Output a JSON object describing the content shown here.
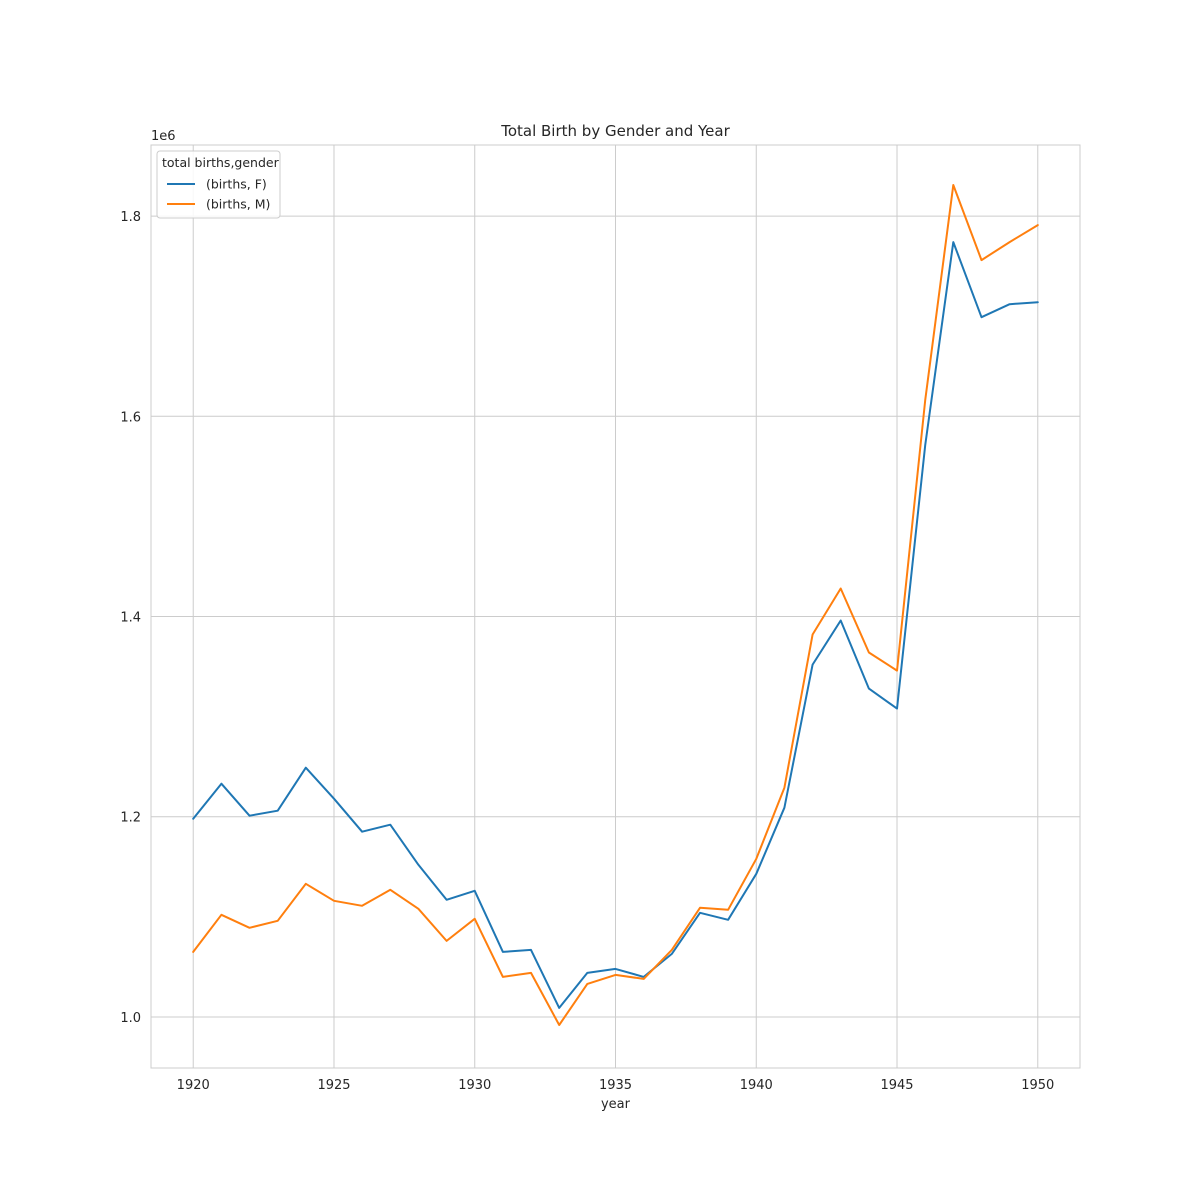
{
  "chart_data": {
    "type": "line",
    "title": "Total Birth by Gender and Year",
    "xlabel": "year",
    "ylabel": "",
    "y_offset_label": "1e6",
    "xlim": [
      1918.5,
      1951.5
    ],
    "ylim": [
      949000,
      1871000
    ],
    "x_ticks": [
      1920,
      1925,
      1930,
      1935,
      1940,
      1945,
      1950
    ],
    "x_tick_labels": [
      "1920",
      "1925",
      "1930",
      "1935",
      "1940",
      "1945",
      "1950"
    ],
    "y_ticks": [
      1000000,
      1200000,
      1400000,
      1600000,
      1800000
    ],
    "y_tick_labels": [
      "1.0",
      "1.2",
      "1.4",
      "1.6",
      "1.8"
    ],
    "grid": true,
    "legend": {
      "title": "total births,gender",
      "placement": "top-left"
    },
    "x": [
      1920,
      1921,
      1922,
      1923,
      1924,
      1925,
      1926,
      1927,
      1928,
      1929,
      1930,
      1931,
      1932,
      1933,
      1934,
      1935,
      1936,
      1937,
      1938,
      1939,
      1940,
      1941,
      1942,
      1943,
      1944,
      1945,
      1946,
      1947,
      1948,
      1949,
      1950
    ],
    "series": [
      {
        "name": "(births, F)",
        "color": "#1f77b4",
        "values": [
          1198000,
          1233000,
          1201000,
          1206000,
          1249000,
          1218000,
          1185000,
          1192000,
          1152000,
          1117000,
          1126000,
          1065000,
          1067000,
          1009000,
          1044000,
          1048000,
          1040000,
          1063000,
          1104000,
          1097000,
          1143000,
          1209000,
          1352000,
          1396000,
          1328000,
          1308000,
          1571000,
          1774000,
          1699000,
          1712000,
          1714000
        ]
      },
      {
        "name": "(births, M)",
        "color": "#ff7f0e",
        "values": [
          1065000,
          1102000,
          1089000,
          1096000,
          1133000,
          1116000,
          1111000,
          1127000,
          1108000,
          1076000,
          1098000,
          1040000,
          1044000,
          992000,
          1033000,
          1042000,
          1038000,
          1067000,
          1109000,
          1107000,
          1158000,
          1229000,
          1382000,
          1428000,
          1364000,
          1346000,
          1616000,
          1831000,
          1756000,
          1774000,
          1791000
        ]
      }
    ]
  }
}
